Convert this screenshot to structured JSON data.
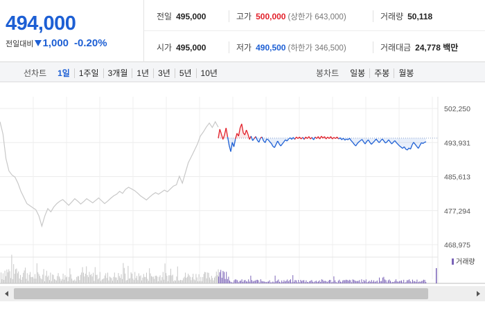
{
  "quote": {
    "price": "494,000",
    "change_label": "전일대비",
    "change_value": "1,000",
    "change_pct": "-0.20%",
    "prev_close_label": "전일",
    "prev_close": "495,000",
    "high_label": "고가",
    "high": "500,000",
    "upper_limit": "(상한가 643,000)",
    "volume_label": "거래량",
    "volume": "50,118",
    "open_label": "시가",
    "open": "495,000",
    "low_label": "저가",
    "low": "490,500",
    "lower_limit": "(하한가 346,500)",
    "turnover_label": "거래대금",
    "turnover": "24,778 백만"
  },
  "line_tabs": {
    "title": "선차트",
    "items": [
      "1일",
      "1주일",
      "3개월",
      "1년",
      "3년",
      "5년",
      "10년"
    ],
    "active": "1일"
  },
  "candle_tabs": {
    "title": "봉차트",
    "items": [
      "일봉",
      "주봉",
      "월봉"
    ]
  },
  "colors": {
    "up": "#e2202a",
    "down": "#1d5fd4",
    "history": "#c8c8c8",
    "volume_today": "#7b64b8"
  },
  "chart_data": {
    "type": "line",
    "y_ticks": [
      "502,250",
      "493,931",
      "485,613",
      "477,294",
      "468,975"
    ],
    "ylim": [
      468975,
      502250
    ],
    "reference_price": 495000,
    "volume_label": "거래량",
    "series": [
      {
        "values": [
          499000,
          496000,
          490000,
          487000,
          486000,
          485500,
          484000,
          482000,
          480500,
          479000,
          478500,
          478000,
          477500,
          476000,
          473500,
          476000,
          477800,
          477000,
          478200,
          479000,
          479600,
          480000,
          479300,
          478600,
          479400,
          480200,
          479600,
          478900,
          479500,
          480200,
          479700,
          479200,
          479800,
          480400,
          479700,
          479000,
          479600,
          480300,
          480900,
          481300,
          482000,
          481500,
          482500,
          483000,
          482600,
          482200,
          481600,
          480900,
          480400,
          479900,
          480600,
          481200,
          481700,
          481300,
          481800,
          482300,
          481900,
          482600,
          483300,
          483600,
          485700,
          484000,
          486500,
          489000,
          490500,
          492000,
          493500,
          495500,
          496500,
          497700,
          498700,
          497600,
          499000,
          497700
        ]
      },
      {
        "values": [
          495000,
          497200,
          496000,
          494700,
          495800,
          497500,
          495300,
          493200,
          491700,
          494000,
          492900,
          494800,
          496200,
          495500,
          497500,
          498500,
          496300,
          495800,
          497000,
          496000,
          494700,
          495500,
          494400,
          494900,
          495400,
          494500,
          494000,
          495000,
          495300,
          494300,
          493900,
          494800,
          494600,
          494100,
          493700,
          493000,
          492700,
          493500,
          494300,
          493600,
          493100,
          493600,
          494100,
          494600,
          494300,
          494800,
          495100,
          494700,
          495200,
          494700,
          495300,
          494900,
          495300,
          494800,
          495200,
          494700,
          495300,
          494900,
          495400,
          494800,
          495200,
          494600,
          495300,
          494900,
          495400,
          494800,
          495500,
          495000,
          495400,
          494800,
          495300,
          494900,
          495400,
          494800,
          495200,
          494900,
          495300,
          494800,
          495100,
          494600,
          495000,
          494500,
          494800,
          494600,
          495000,
          494400,
          494000,
          493500,
          493100,
          493700,
          494100,
          494400,
          494700,
          494100,
          493600,
          494200,
          494600,
          494000,
          493500,
          493900,
          494300,
          494800,
          494300,
          493900,
          494400,
          494800,
          494300,
          493800,
          494100,
          494600,
          494100,
          493600,
          494000,
          494400,
          493900,
          493500,
          493100,
          492800,
          492500,
          492900,
          492300,
          492100,
          492600,
          492300,
          493300,
          494000,
          493500,
          493000,
          492500,
          493200,
          493900,
          493700,
          494000,
          494100
        ]
      }
    ]
  }
}
